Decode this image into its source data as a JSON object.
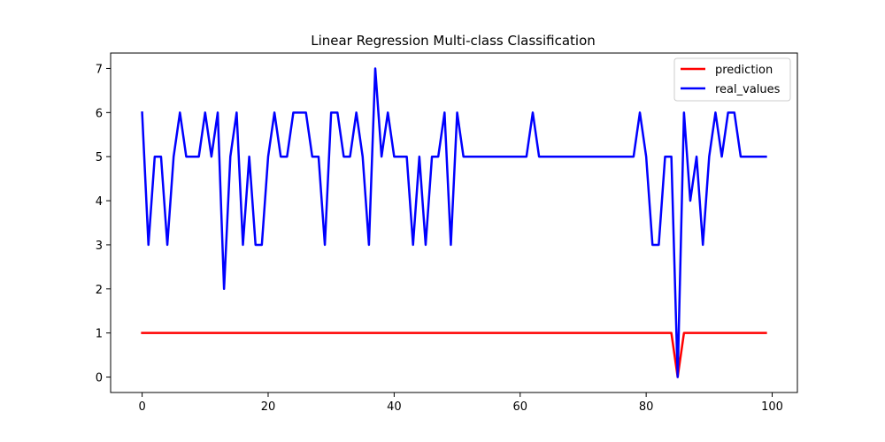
{
  "chart_data": {
    "type": "line",
    "title": "Linear Regression Multi-class Classification",
    "xlabel": "",
    "ylabel": "",
    "xlim": [
      -5,
      104
    ],
    "ylim": [
      -0.35,
      7.35
    ],
    "xticks": [
      0,
      20,
      40,
      60,
      80,
      100
    ],
    "yticks": [
      0,
      1,
      2,
      3,
      4,
      5,
      6,
      7
    ],
    "grid": false,
    "legend_position": "top-right",
    "series": [
      {
        "name": "prediction",
        "color": "#ff0000",
        "values": [
          1,
          1,
          1,
          1,
          1,
          1,
          1,
          1,
          1,
          1,
          1,
          1,
          1,
          1,
          1,
          1,
          1,
          1,
          1,
          1,
          1,
          1,
          1,
          1,
          1,
          1,
          1,
          1,
          1,
          1,
          1,
          1,
          1,
          1,
          1,
          1,
          1,
          1,
          1,
          1,
          1,
          1,
          1,
          1,
          1,
          1,
          1,
          1,
          1,
          1,
          1,
          1,
          1,
          1,
          1,
          1,
          1,
          1,
          1,
          1,
          1,
          1,
          1,
          1,
          1,
          1,
          1,
          1,
          1,
          1,
          1,
          1,
          1,
          1,
          1,
          1,
          1,
          1,
          1,
          1,
          1,
          1,
          1,
          1,
          1,
          0,
          1,
          1,
          1,
          1,
          1,
          1,
          1,
          1,
          1,
          1,
          1,
          1,
          1,
          1
        ]
      },
      {
        "name": "real_values",
        "color": "#0000ff",
        "values": [
          6,
          3,
          5,
          5,
          3,
          5,
          6,
          5,
          5,
          5,
          6,
          5,
          6,
          2,
          5,
          6,
          3,
          5,
          3,
          3,
          5,
          6,
          5,
          5,
          6,
          6,
          6,
          5,
          5,
          3,
          6,
          6,
          5,
          5,
          6,
          5,
          3,
          7,
          5,
          6,
          5,
          5,
          5,
          3,
          5,
          3,
          5,
          5,
          6,
          3,
          6,
          5,
          5,
          5,
          5,
          5,
          5,
          5,
          5,
          5,
          5,
          5,
          6,
          5,
          5,
          5,
          5,
          5,
          5,
          5,
          5,
          5,
          5,
          5,
          5,
          5,
          5,
          5,
          5,
          6,
          5,
          3,
          3,
          5,
          5,
          0,
          6,
          4,
          5,
          3,
          5,
          6,
          5,
          6,
          6,
          5,
          5,
          5,
          5,
          5
        ]
      }
    ]
  }
}
